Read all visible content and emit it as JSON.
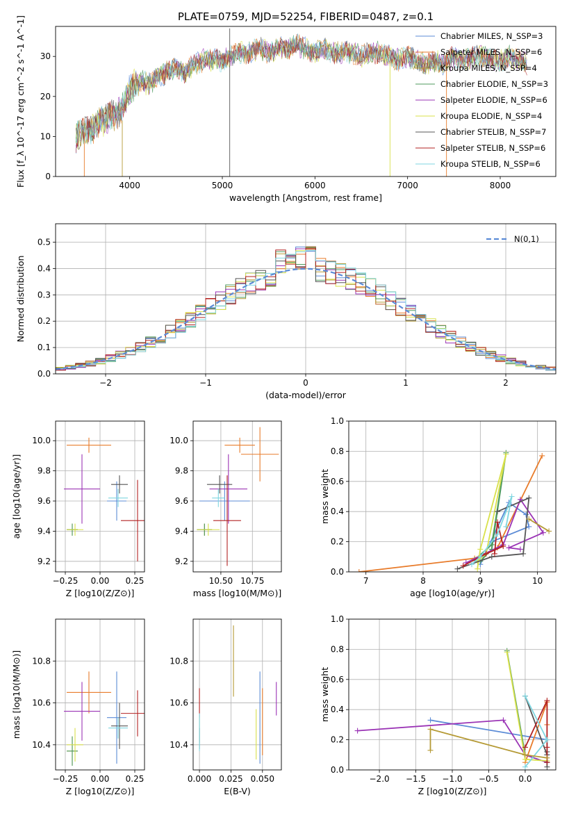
{
  "title": "PLATE=0759, MJD=52254, FIBERID=0487, z=0.1",
  "colors": {
    "Chabrier MILES": "#5b8bd6",
    "Salpeter MILES": "#e87b2a",
    "Kroupa MILES": "#b59a35",
    "Chabrier ELODIE": "#4e9a5e",
    "Salpeter ELODIE": "#9a33b5",
    "Kroupa ELODIE": "#d8e04a",
    "Chabrier STELIB": "#555555",
    "Salpeter STELIB": "#b22222",
    "Kroupa STELIB": "#7fd6e0"
  },
  "chart_data": [
    {
      "type": "line",
      "title": "PLATE=0759, MJD=52254, FIBERID=0487, z=0.1",
      "xlabel": "wavelength [Angstrom, rest frame]",
      "ylabel": "Flux [f_λ 10^-17 erg cm^-2 s^-1 A^-1]",
      "xlim": [
        3200,
        8600
      ],
      "ylim": [
        0,
        37.5
      ],
      "xticks": [
        4000,
        5000,
        6000,
        7000,
        8000
      ],
      "yticks": [
        0,
        10,
        20,
        30
      ],
      "legend_position": "top-right",
      "spectrum_x": [
        3420,
        3500,
        3600,
        3700,
        3800,
        3900,
        4000,
        4100,
        4200,
        4300,
        4400,
        4500,
        4600,
        4700,
        4800,
        4900,
        5000,
        5100,
        5200,
        5300,
        5400,
        5500,
        5600,
        5700,
        5800,
        5900,
        6000,
        6100,
        6200,
        6300,
        6400,
        6500,
        6600,
        6700,
        6800,
        6900,
        7000,
        7100,
        7200,
        7300,
        7400,
        7500,
        7600,
        7700,
        7800,
        7900,
        8000,
        8100,
        8200,
        8300
      ],
      "spectrum_y": [
        10,
        11,
        12,
        14,
        15,
        16,
        22,
        24,
        23,
        25,
        26,
        27,
        26,
        28,
        29,
        29,
        29,
        30,
        31,
        31,
        32,
        31,
        32,
        32,
        33,
        32,
        31,
        32,
        31,
        31,
        31,
        30,
        31,
        31,
        30,
        29,
        30,
        29,
        28,
        29,
        28,
        30,
        29,
        30,
        30,
        29,
        29,
        30,
        29,
        28
      ],
      "series": [
        {
          "name": "Chabrier MILES, N_SSP=3"
        },
        {
          "name": "Salpeter MILES, N_SSP=6"
        },
        {
          "name": "Kroupa MILES, N_SSP=4"
        },
        {
          "name": "Chabrier ELODIE, N_SSP=3"
        },
        {
          "name": "Salpeter ELODIE, N_SSP=6"
        },
        {
          "name": "Kroupa ELODIE, N_SSP=4"
        },
        {
          "name": "Chabrier STELIB, N_SSP=7"
        },
        {
          "name": "Salpeter STELIB, N_SSP=6"
        },
        {
          "name": "Kroupa STELIB, N_SSP=6"
        }
      ]
    },
    {
      "type": "histogram",
      "xlabel": "(data-model)/error",
      "ylabel": "Normed distribution",
      "xlim": [
        -2.5,
        2.5
      ],
      "ylim": [
        0,
        0.57
      ],
      "xticks": [
        -2,
        -1,
        0,
        1,
        2
      ],
      "yticks": [
        0.0,
        0.1,
        0.2,
        0.3,
        0.4,
        0.5
      ],
      "grid": true,
      "legend": "N(0,1)",
      "legend_position": "top-right",
      "bin_width": 0.1,
      "bin_start": -2.5,
      "envelope": [
        0.018,
        0.022,
        0.026,
        0.031,
        0.037,
        0.044,
        0.052,
        0.061,
        0.072,
        0.084,
        0.097,
        0.112,
        0.128,
        0.146,
        0.165,
        0.186,
        0.207,
        0.23,
        0.252,
        0.275,
        0.297,
        0.318,
        0.338,
        0.356,
        0.372,
        0.386,
        0.397,
        0.405,
        0.41,
        0.412,
        0.41,
        0.405,
        0.397,
        0.386,
        0.372,
        0.356,
        0.338,
        0.318,
        0.297,
        0.275,
        0.252,
        0.23,
        0.207,
        0.186,
        0.165,
        0.146,
        0.128,
        0.112,
        0.097,
        0.084
      ]
    },
    {
      "type": "errorbar",
      "xlabel": "Z [log10(Z/Z⊙)]",
      "ylabel": "age [log10(age/yr)]",
      "xlim": [
        -0.32,
        0.32
      ],
      "ylim": [
        9.13,
        10.13
      ],
      "xticks": [
        -0.25,
        0.0,
        0.25
      ],
      "xticklabels": [
        "−0.25",
        "0.00",
        "0.25"
      ],
      "yticks": [
        9.2,
        9.4,
        9.6,
        9.8,
        10.0
      ],
      "grid": true,
      "points": [
        {
          "model": "Chabrier MILES",
          "x": 0.12,
          "xerr": 0.07,
          "y": 9.6,
          "yerr": 0.13
        },
        {
          "model": "Salpeter MILES",
          "x": -0.08,
          "xerr": 0.16,
          "y": 9.97,
          "yerr": 0.05
        },
        {
          "model": "Kroupa MILES",
          "x": -0.2,
          "xerr": 0.04,
          "y": 9.41,
          "yerr": 0.04
        },
        {
          "model": "Chabrier ELODIE",
          "x": -0.2,
          "xerr": 0.04,
          "y": 9.41,
          "yerr": 0.04
        },
        {
          "model": "Salpeter ELODIE",
          "x": -0.13,
          "xerr": 0.13,
          "y": 9.68,
          "yerr": 0.23
        },
        {
          "model": "Kroupa ELODIE",
          "x": -0.18,
          "xerr": 0.06,
          "y": 9.41,
          "yerr": 0.04
        },
        {
          "model": "Chabrier STELIB",
          "x": 0.14,
          "xerr": 0.06,
          "y": 9.71,
          "yerr": 0.06
        },
        {
          "model": "Salpeter STELIB",
          "x": 0.27,
          "xerr": 0.12,
          "y": 9.47,
          "yerr": 0.27
        },
        {
          "model": "Kroupa STELIB",
          "x": 0.13,
          "xerr": 0.07,
          "y": 9.62,
          "yerr": 0.06
        }
      ]
    },
    {
      "type": "errorbar",
      "xlabel": "mass [log10(M/M⊙)]",
      "xlim": [
        10.28,
        10.98
      ],
      "ylim": [
        9.13,
        10.13
      ],
      "xticks": [
        10.5,
        10.75
      ],
      "xticklabels": [
        "10.50",
        "10.75"
      ],
      "yticks": [
        9.2,
        9.4,
        9.6,
        9.8,
        10.0
      ],
      "grid": true,
      "points": [
        {
          "model": "Chabrier MILES",
          "x": 10.53,
          "xerr": 0.2,
          "y": 9.6,
          "yerr": 0.13
        },
        {
          "model": "Salpeter MILES",
          "x": 10.65,
          "xerr": 0.12,
          "y": 9.97,
          "yerr": 0.05
        },
        {
          "model": "Kroupa MILES",
          "x": 10.37,
          "xerr": 0.06,
          "y": 9.41,
          "yerr": 0.04
        },
        {
          "model": "Chabrier ELODIE",
          "x": 10.37,
          "xerr": 0.06,
          "y": 9.41,
          "yerr": 0.04
        },
        {
          "model": "Salpeter ELODIE",
          "x": 10.56,
          "xerr": 0.15,
          "y": 9.68,
          "yerr": 0.23
        },
        {
          "model": "Kroupa ELODIE",
          "x": 10.4,
          "xerr": 0.09,
          "y": 9.41,
          "yerr": 0.04
        },
        {
          "model": "Chabrier STELIB",
          "x": 10.49,
          "xerr": 0.1,
          "y": 9.71,
          "yerr": 0.06
        },
        {
          "model": "Salpeter STELIB",
          "x": 10.55,
          "xerr": 0.11,
          "y": 9.47,
          "yerr": 0.3
        },
        {
          "model": "Kroupa STELIB",
          "x": 10.48,
          "xerr": 0.05,
          "y": 9.62,
          "yerr": 0.06
        },
        {
          "model": "Salpeter MILES",
          "x": 10.81,
          "xerr": 0.15,
          "y": 9.91,
          "yerr": 0.18
        }
      ]
    },
    {
      "type": "line",
      "xlabel": "age [log10(age/yr)]",
      "ylabel": "mass weight",
      "xlim": [
        6.7,
        10.32
      ],
      "ylim": [
        0,
        1.0
      ],
      "xticks": [
        7,
        8,
        9,
        10
      ],
      "yticks": [
        0.0,
        0.2,
        0.4,
        0.6,
        0.8,
        1.0
      ],
      "grid": true,
      "series": [
        {
          "model": "Chabrier MILES",
          "x": [
            9.0,
            9.5,
            9.8,
            9.85,
            9.2
          ],
          "y": [
            0.05,
            0.46,
            0.38,
            0.3,
            0.2
          ]
        },
        {
          "model": "Salpeter MILES",
          "x": [
            6.88,
            8.9,
            9.3,
            10.08
          ],
          "y": [
            0.0,
            0.09,
            0.16,
            0.77
          ]
        },
        {
          "model": "Chabrier ELODIE",
          "x": [
            8.9,
            9.2,
            9.45,
            9.2,
            9.0
          ],
          "y": [
            0.08,
            0.18,
            0.79,
            0.15,
            0.07
          ]
        },
        {
          "model": "Salpeter ELODIE",
          "x": [
            8.75,
            9.4,
            9.7,
            10.1,
            9.5,
            9.7
          ],
          "y": [
            0.06,
            0.18,
            0.48,
            0.26,
            0.16,
            0.15
          ]
        },
        {
          "model": "Kroupa ELODIE",
          "x": [
            8.95,
            9.0,
            9.45,
            9.1,
            8.95
          ],
          "y": [
            0.02,
            0.15,
            0.78,
            0.12,
            0.07
          ]
        },
        {
          "model": "Chabrier STELIB",
          "x": [
            8.6,
            9.2,
            9.75,
            9.85,
            9.3
          ],
          "y": [
            0.02,
            0.1,
            0.12,
            0.49,
            0.4
          ]
        },
        {
          "model": "Salpeter STELIB",
          "x": [
            8.7,
            9.1,
            9.4,
            9.3,
            9.25
          ],
          "y": [
            0.04,
            0.12,
            0.17,
            0.33,
            0.12
          ]
        },
        {
          "model": "Kroupa STELIB",
          "x": [
            8.85,
            9.0,
            9.3,
            9.55,
            9.45
          ],
          "y": [
            0.05,
            0.1,
            0.25,
            0.5,
            0.3
          ]
        },
        {
          "model": "Kroupa MILES",
          "x": [
            9.85,
            10.2
          ],
          "y": [
            0.35,
            0.27
          ]
        }
      ]
    },
    {
      "type": "errorbar",
      "xlabel": "Z [log10(Z/Z⊙)]",
      "ylabel": "mass [log10(M/M⊙)]",
      "xlim": [
        -0.32,
        0.32
      ],
      "ylim": [
        10.28,
        11.0
      ],
      "xticks": [
        -0.25,
        0.0,
        0.25
      ],
      "xticklabels": [
        "−0.25",
        "0.00",
        "0.25"
      ],
      "yticks": [
        10.4,
        10.6,
        10.8
      ],
      "grid": true,
      "points": [
        {
          "model": "Chabrier MILES",
          "x": 0.12,
          "xerr": 0.07,
          "y": 10.53,
          "yerr": 0.22
        },
        {
          "model": "Salpeter MILES",
          "x": -0.08,
          "xerr": 0.16,
          "y": 10.65,
          "yerr": 0.1
        },
        {
          "model": "Kroupa MILES",
          "x": -0.2,
          "xerr": 0.04,
          "y": 10.37,
          "yerr": 0.07
        },
        {
          "model": "Chabrier ELODIE",
          "x": -0.2,
          "xerr": 0.04,
          "y": 10.37,
          "yerr": 0.07
        },
        {
          "model": "Salpeter ELODIE",
          "x": -0.13,
          "xerr": 0.13,
          "y": 10.56,
          "yerr": 0.14
        },
        {
          "model": "Kroupa ELODIE",
          "x": -0.18,
          "xerr": 0.06,
          "y": 10.4,
          "yerr": 0.08
        },
        {
          "model": "Chabrier STELIB",
          "x": 0.14,
          "xerr": 0.06,
          "y": 10.49,
          "yerr": 0.11
        },
        {
          "model": "Salpeter STELIB",
          "x": 0.27,
          "xerr": 0.12,
          "y": 10.55,
          "yerr": 0.11
        },
        {
          "model": "Kroupa STELIB",
          "x": 0.13,
          "xerr": 0.07,
          "y": 10.48,
          "yerr": 0.05
        }
      ]
    },
    {
      "type": "errorbar",
      "xlabel": "E(B-V)",
      "xlim": [
        -0.005,
        0.065
      ],
      "ylim": [
        10.28,
        11.0
      ],
      "xticks": [
        0.0,
        0.025,
        0.05
      ],
      "xticklabels": [
        "0.000",
        "0.025",
        "0.050"
      ],
      "yticks": [
        10.4,
        10.6,
        10.8
      ],
      "grid": true,
      "points": [
        {
          "model": "Chabrier MILES",
          "x": 0.048,
          "y": 10.53,
          "yerr": 0.22
        },
        {
          "model": "Salpeter MILES",
          "x": 0.05,
          "y": 10.51,
          "yerr": 0.16
        },
        {
          "model": "Kroupa MILES",
          "x": 0.0,
          "y": 10.47,
          "yerr": 0.06
        },
        {
          "model": "Salpeter ELODIE",
          "x": 0.061,
          "y": 10.62,
          "yerr": 0.08
        },
        {
          "model": "Kroupa ELODIE",
          "x": 0.045,
          "y": 10.45,
          "yerr": 0.12
        },
        {
          "model": "Chabrier STELIB",
          "x": 0.0,
          "y": 10.43,
          "yerr": 0.05
        },
        {
          "model": "Salpeter STELIB",
          "x": 0.0,
          "y": 10.6,
          "yerr": 0.07
        },
        {
          "model": "Kroupa STELIB",
          "x": 0.0,
          "y": 10.46,
          "yerr": 0.09
        },
        {
          "model": "Kroupa MILES",
          "x": 0.027,
          "y": 10.8,
          "yerr": 0.17
        }
      ]
    },
    {
      "type": "line",
      "xlabel": "Z [log10(Z/Z⊙)]",
      "ylabel": "mass weight",
      "xlim": [
        -2.42,
        0.42
      ],
      "ylim": [
        0,
        1.0
      ],
      "xticks": [
        -2.0,
        -1.5,
        -1.0,
        -0.5,
        0.0
      ],
      "xticklabels": [
        "−2.0",
        "−1.5",
        "−1.0",
        "−0.5",
        "0.0"
      ],
      "yticks": [
        0.0,
        0.2,
        0.4,
        0.6,
        0.8,
        1.0
      ],
      "grid": true,
      "series": [
        {
          "model": "Chabrier MILES",
          "x": [
            -1.3,
            0.3,
            0.3,
            0.3
          ],
          "y": [
            0.33,
            0.2,
            0.1,
            0.05
          ]
        },
        {
          "model": "Salpeter MILES",
          "x": [
            0.0,
            0.3,
            0.3
          ],
          "y": [
            0.05,
            0.45,
            0.3
          ]
        },
        {
          "model": "Chabrier ELODIE",
          "x": [
            -0.25,
            0.0,
            0.3
          ],
          "y": [
            0.79,
            0.1,
            0.05
          ]
        },
        {
          "model": "Salpeter ELODIE",
          "x": [
            -2.3,
            -0.3,
            0.0,
            0.3
          ],
          "y": [
            0.26,
            0.33,
            0.1,
            0.05
          ]
        },
        {
          "model": "Kroupa ELODIE",
          "x": [
            -0.25,
            0.0,
            0.3
          ],
          "y": [
            0.78,
            0.07,
            0.06
          ]
        },
        {
          "model": "Chabrier STELIB",
          "x": [
            0.0,
            0.3,
            0.3,
            0.3
          ],
          "y": [
            0.49,
            0.1,
            0.02,
            0.12
          ]
        },
        {
          "model": "Salpeter STELIB",
          "x": [
            0.0,
            0.3,
            0.3,
            0.3
          ],
          "y": [
            0.15,
            0.46,
            0.05,
            0.15
          ]
        },
        {
          "model": "Kroupa STELIB",
          "x": [
            0.0,
            0.3,
            0.0
          ],
          "y": [
            0.49,
            0.2,
            0.02
          ]
        },
        {
          "model": "Kroupa MILES",
          "x": [
            -1.3,
            -1.3,
            0.0,
            0.3
          ],
          "y": [
            0.13,
            0.27,
            0.1,
            0.08
          ]
        }
      ]
    }
  ]
}
